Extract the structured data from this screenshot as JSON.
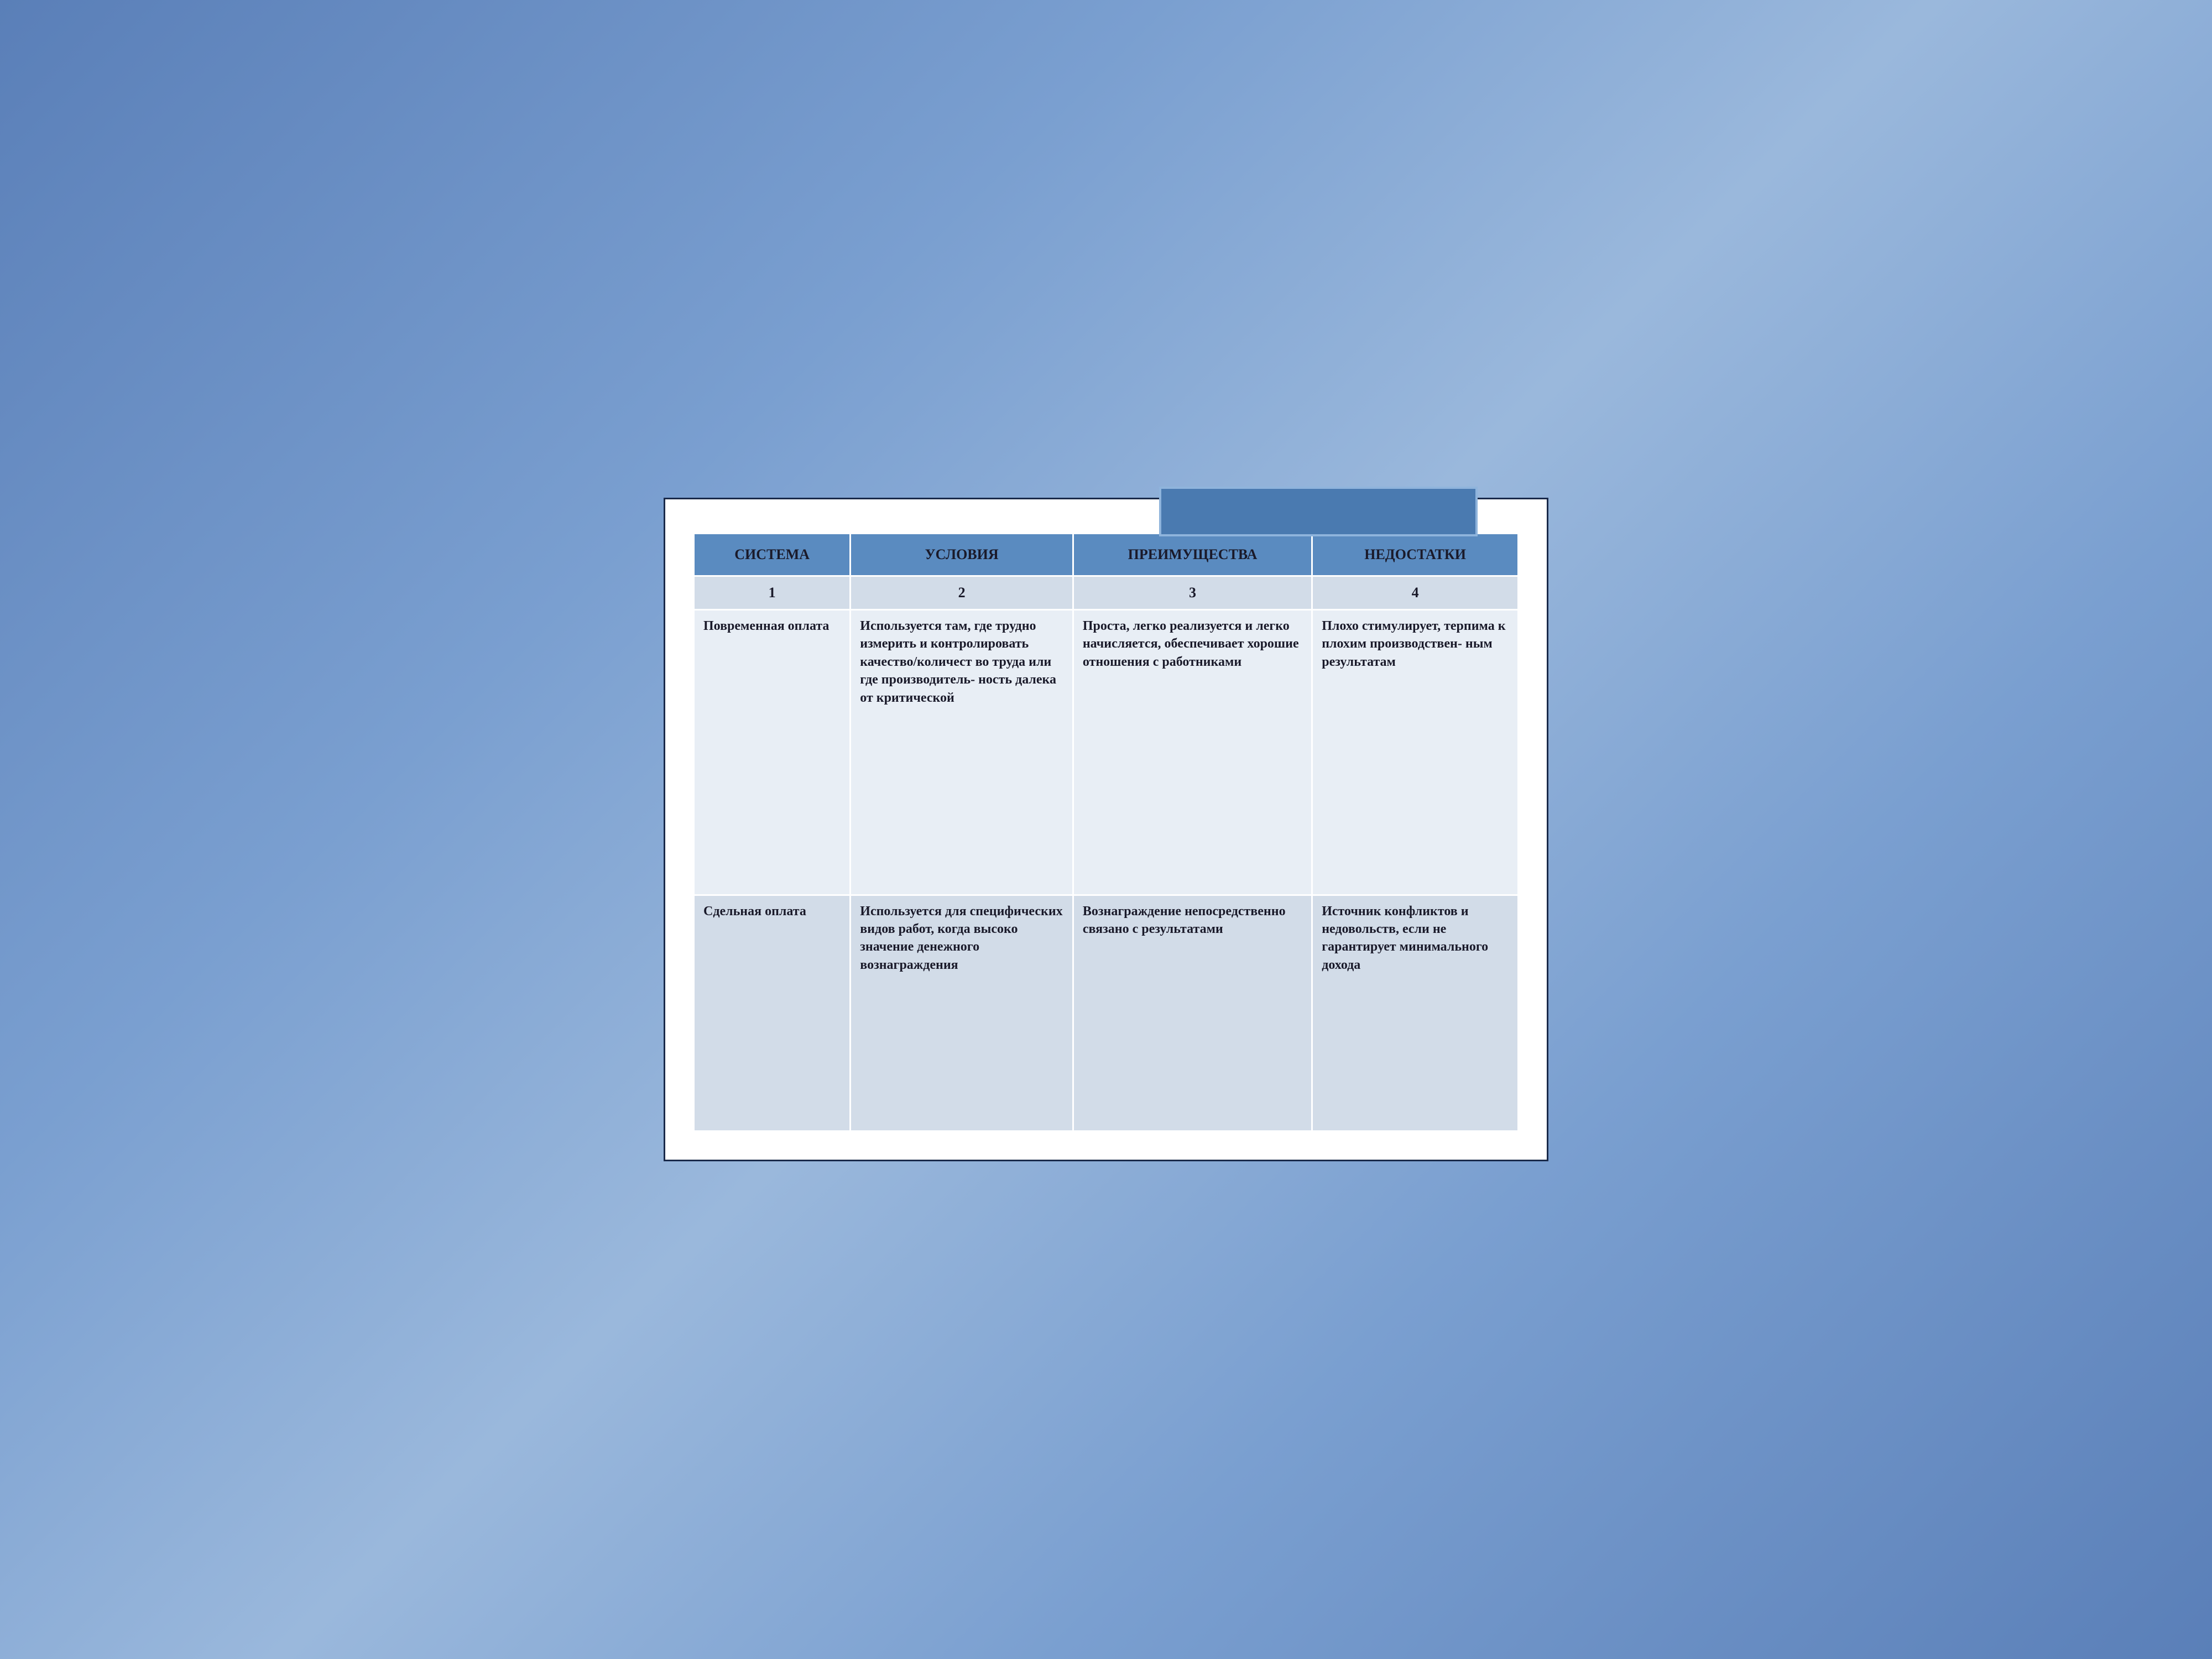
{
  "styling": {
    "background_gradient": [
      "#5a7fb8",
      "#7a9fd0",
      "#9ab8dc"
    ],
    "frame_border": "#1a2a4a",
    "frame_bg": "#ffffff",
    "tab_bg": "#4a7ab0",
    "tab_border": "#8fb4dc",
    "header_bg": "#5a8bc0",
    "number_row_bg": "#d2dce8",
    "row_a_bg": "#e8eef5",
    "row_b_bg": "#d2dce8",
    "cell_border": "#ffffff",
    "text_color": "#1a1a2a",
    "header_fontsize": 26,
    "body_fontsize": 24,
    "font_family": "Georgia, Times New Roman, serif"
  },
  "table": {
    "type": "table",
    "columns": [
      "СИСТЕМА",
      "УСЛОВИЯ",
      "ПРЕИМУЩЕСТВА",
      "НЕДОСТАТКИ"
    ],
    "col_numbers": [
      "1",
      "2",
      "3",
      "4"
    ],
    "col_widths_pct": [
      19,
      27,
      29,
      25
    ],
    "rows": [
      {
        "system": "Повременная оплата",
        "conditions": "Используется там, где трудно измерить и контролировать качество/количест во труда или где производитель- ность далека от критической",
        "advantages": "Проста, легко реализуется и легко начисляется, обеспечивает хорошие отношения с работниками",
        "disadvantages": "Плохо стимулирует, терпима к плохим производствен- ным результатам"
      },
      {
        "system": "Сдельная оплата",
        "conditions": "Используется для специфических видов работ, когда высоко значение денежного вознаграждения",
        "advantages": "Вознаграждение непосредственно связано с результатами",
        "disadvantages": "Источник конфликтов и недовольств, если не гарантирует минимального дохода"
      }
    ]
  }
}
